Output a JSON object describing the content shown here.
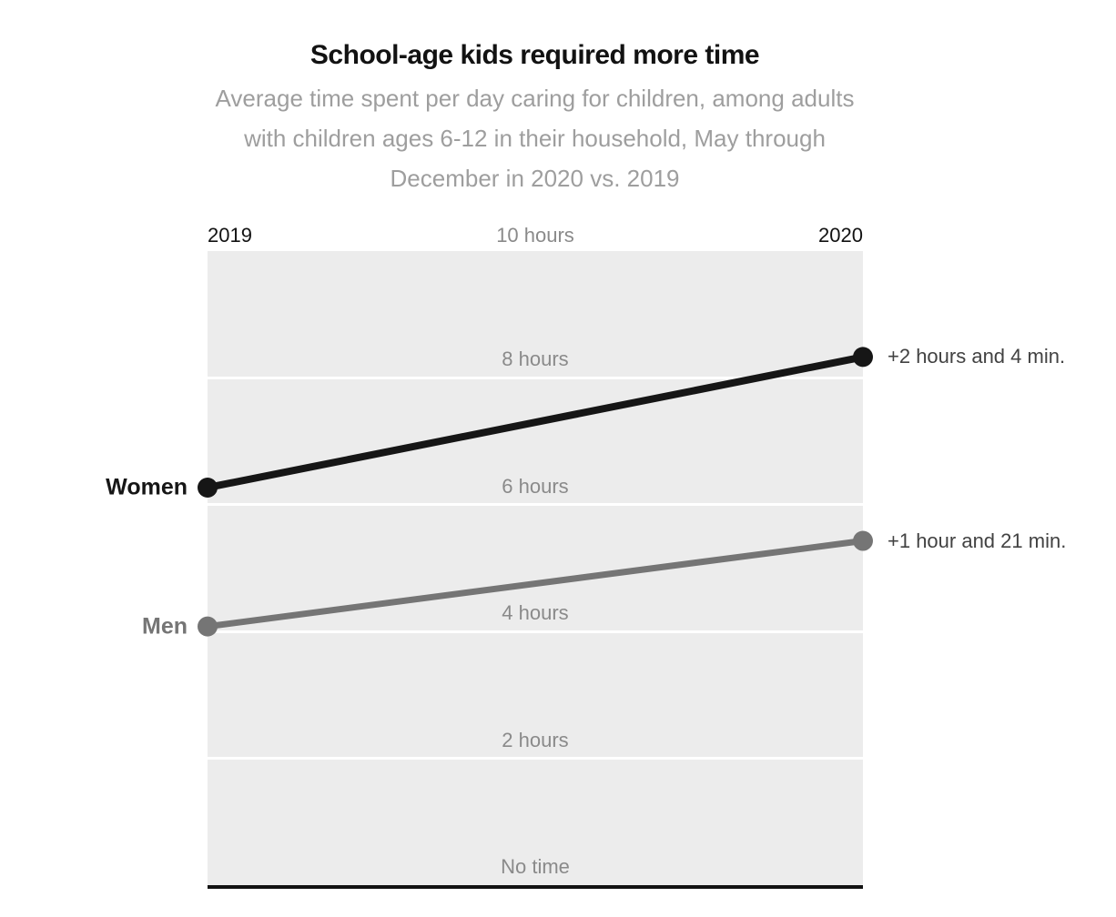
{
  "header": {
    "title": "School-age kids required more time",
    "subtitle_lines": [
      "Average time spent per day caring for children, among adults",
      "with children ages 6-12 in their household, May through",
      "December in 2020 vs. 2019"
    ]
  },
  "axis": {
    "left_label": "2019",
    "top_center_label": "10 hours",
    "right_label": "2020"
  },
  "chart_data": {
    "type": "line",
    "title": "School-age kids required more time",
    "x": [
      2019,
      2020
    ],
    "x_labels": [
      "2019",
      "2020"
    ],
    "series": [
      {
        "name": "Women",
        "values_hours": [
          6.27,
          8.33
        ],
        "values_hhmm": [
          "6:16",
          "8:20"
        ],
        "change_label": "+2 hours and 4 min.",
        "color": "#161616"
      },
      {
        "name": "Men",
        "values_hours": [
          4.08,
          5.43
        ],
        "values_hhmm": [
          "4:05",
          "5:26"
        ],
        "change_label": "+1 hour and 21 min.",
        "color": "#757575"
      }
    ],
    "ylim": [
      0,
      10
    ],
    "yticks": [
      {
        "value": 8,
        "label": "8 hours"
      },
      {
        "value": 6,
        "label": "6 hours"
      },
      {
        "value": 4,
        "label": "4 hours"
      },
      {
        "value": 2,
        "label": "2 hours"
      },
      {
        "value": 0,
        "label": "No time"
      }
    ],
    "top_tick": {
      "value": 10,
      "label": "10 hours"
    },
    "grid": true,
    "colors": {
      "plot_bg": "#ececec",
      "gridline": "#ffffff",
      "axis_line": "#121212",
      "tick_text": "#8a8a8a",
      "annotation_text": "#424242"
    }
  }
}
